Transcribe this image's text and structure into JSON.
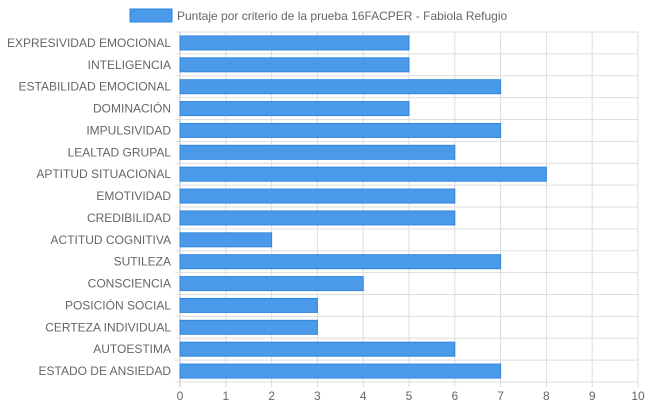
{
  "chart_data": {
    "type": "bar",
    "orientation": "horizontal",
    "series": [
      {
        "name": "Puntaje por criterio de la prueba 16FACPER - Fabiola Refugio",
        "values": [
          5,
          5,
          7,
          5,
          7,
          6,
          8,
          6,
          6,
          2,
          7,
          4,
          3,
          3,
          6,
          7
        ]
      }
    ],
    "categories": [
      "EXPRESIVIDAD EMOCIONAL",
      "INTELIGENCIA",
      "ESTABILIDAD EMOCIONAL",
      "DOMINACIÓN",
      "IMPULSIVIDAD",
      "LEALTAD GRUPAL",
      "APTITUD SITUACIONAL",
      "EMOTIVIDAD",
      "CREDIBILIDAD",
      "ACTITUD COGNITIVA",
      "SUTILEZA",
      "CONSCIENCIA",
      "POSICIÓN SOCIAL",
      "CERTEZA INDIVIDUAL",
      "AUTOESTIMA",
      "ESTADO DE ANSIEDAD"
    ],
    "xlim": [
      0,
      10
    ],
    "xticks": [
      0,
      1,
      2,
      3,
      4,
      5,
      6,
      7,
      8,
      9,
      10
    ],
    "grid": true,
    "legend_position": "top",
    "colors": {
      "bar_fill": "#4a9ae9",
      "bar_stroke": "#2f86e0",
      "grid": "#dddddd",
      "text": "#666666"
    }
  }
}
